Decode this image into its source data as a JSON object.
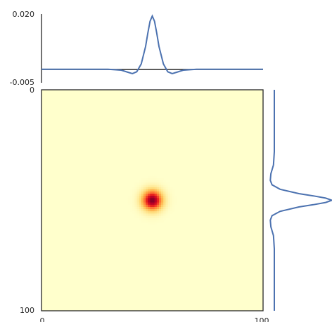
{
  "chart_data": [
    {
      "type": "line",
      "panel": "top-marginal",
      "ylim": [
        -0.005,
        0.02
      ],
      "y_ticks": [
        "0.020",
        "-0.005"
      ],
      "baseline": 0,
      "x_range": [
        0,
        100
      ],
      "series": [
        {
          "color": "#4c72b0",
          "x": [
            0,
            30,
            36,
            39,
            41,
            43,
            45,
            47,
            48,
            49,
            50,
            51,
            52,
            53,
            55,
            57,
            59,
            61,
            64,
            70,
            100
          ],
          "y": [
            0,
            0,
            -0.0003,
            -0.0011,
            -0.0016,
            -0.0009,
            0.002,
            0.0085,
            0.0135,
            0.0178,
            0.0198,
            0.0178,
            0.0135,
            0.0085,
            0.002,
            -0.0009,
            -0.0016,
            -0.0011,
            -0.0003,
            0,
            0
          ]
        }
      ]
    },
    {
      "type": "heatmap",
      "panel": "main",
      "x_range": [
        0,
        100
      ],
      "y_range": [
        0,
        100
      ],
      "x_ticks": [
        "0",
        "100"
      ],
      "y_ticks": [
        "0",
        "100"
      ],
      "y_inverted": true,
      "grid_size": 100,
      "peak_center": [
        50,
        50
      ],
      "peak_sigma": 3.2,
      "colormap": "YlOrRd",
      "colors": [
        "#ffffcc",
        "#ffeda0",
        "#fed976",
        "#feb24c",
        "#fd8d3c",
        "#fc4e2a",
        "#e31a1c",
        "#bd0026",
        "#800026"
      ]
    },
    {
      "type": "line",
      "panel": "right-marginal",
      "orientation": "vertical",
      "y_range": [
        0,
        100
      ],
      "series": [
        {
          "color": "#4c72b0",
          "y": [
            0,
            28,
            34,
            38,
            41,
            43,
            45,
            47,
            48,
            49,
            50,
            51,
            52,
            53,
            55,
            57,
            59,
            62,
            66,
            72,
            100
          ],
          "value": [
            0,
            0,
            -0.0003,
            -0.0012,
            -0.0014,
            -0.0008,
            0.002,
            0.0085,
            0.0135,
            0.0178,
            0.02,
            0.0178,
            0.0135,
            0.0085,
            0.002,
            -0.0008,
            -0.0014,
            -0.0012,
            -0.0003,
            0,
            0
          ]
        }
      ]
    }
  ]
}
